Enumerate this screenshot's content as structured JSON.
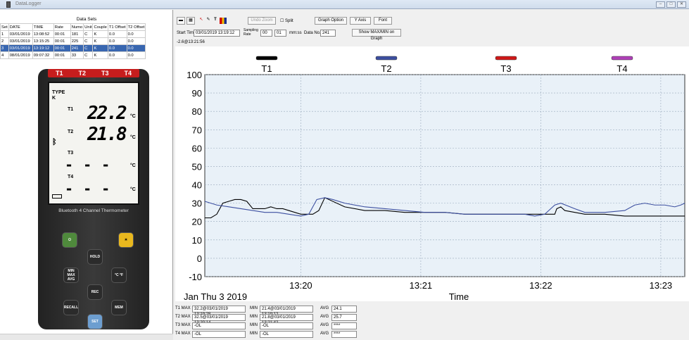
{
  "window": {
    "title": "DataLogger"
  },
  "datasets": {
    "title": "Data Sets",
    "headers": [
      "Set",
      "DATE",
      "TIME",
      "Rate",
      "Numo",
      "Unit",
      "Couple",
      "T1 Offset",
      "T2 Offset"
    ],
    "rows": [
      [
        "1",
        "03/01/2019",
        "13:08:52",
        "00:01",
        "181",
        "C",
        "K",
        "0.0",
        "0.0"
      ],
      [
        "2",
        "03/01/2019",
        "13:15:25",
        "00:01",
        "225",
        "C",
        "K",
        "0.0",
        "0.0"
      ],
      [
        "3",
        "03/01/2019",
        "13:19:12",
        "00:01",
        "241",
        "C",
        "K",
        "0.0",
        "0.0"
      ],
      [
        "4",
        "08/01/2019",
        "09:07:32",
        "00:01",
        "33",
        "C",
        "K",
        "0.0",
        "0.0"
      ]
    ],
    "selected_row": 2
  },
  "meter": {
    "channels": [
      "T1",
      "T2",
      "T3",
      "T4"
    ],
    "type_label": "TYPE",
    "type_value": "K",
    "t1_label": "T1",
    "t1_value": "22.2",
    "t2_label": "T2",
    "t2_value": "21.8",
    "t3_label": "T3",
    "t4_label": "T4",
    "dash": "- - -",
    "unit": "°C",
    "brand": "Bluetooth 4 Channel Thermometer",
    "battery_icon": "battery-icon",
    "bluetooth_icon": "bluetooth-icon",
    "keys": {
      "power": "⏻",
      "light": "☀",
      "hold": "HOLD",
      "minmax": "MIN MAX AVG",
      "cf": "°C °F",
      "rec": "REC",
      "recall": "RECALL",
      "mem": "MEM",
      "set": "SET"
    }
  },
  "toolbar": {
    "undo_zoom": "Undo Zoom",
    "split": "Split",
    "graph_option": "Graph Option",
    "y_axis": "Y Axis",
    "font": "Font",
    "start_time_label": "Start Time",
    "start_time": "03/01/2019 13:19:12",
    "sampling_rate_label": "Sampling Rate",
    "rate_h": "00",
    "rate_m": "01",
    "rate_unit": "mm:ss",
    "data_no_label": "Data No.",
    "data_no": "241",
    "show_maxmin": "Show MAX/MIN on Graph",
    "cursor_readout": "-2.6@13:21:56",
    "colors": {
      "draw": "#d00000",
      "palette_a": "#d00000",
      "palette_b": "#f0c000",
      "palette_c": "#1a2b8c"
    }
  },
  "chart_data": {
    "type": "line",
    "date_label": "Jan Thu 3 2019",
    "xlabel": "Time",
    "ylim": [
      -10,
      100
    ],
    "yticks": [
      -10,
      0,
      10,
      20,
      30,
      40,
      50,
      60,
      70,
      80,
      90,
      100
    ],
    "xlim": [
      "13:19:12",
      "13:23:12"
    ],
    "xticks": [
      {
        "t": "13:20",
        "v": 48
      },
      {
        "t": "13:21",
        "v": 108
      },
      {
        "t": "13:22",
        "v": 168
      },
      {
        "t": "13:23",
        "v": 228
      }
    ],
    "series": [
      {
        "name": "T1",
        "color": "#000000",
        "x": [
          0,
          3,
          6,
          9,
          12,
          15,
          18,
          21,
          24,
          27,
          30,
          33,
          36,
          39,
          42,
          45,
          48,
          51,
          54,
          57,
          60,
          70,
          80,
          90,
          100,
          110,
          120,
          130,
          140,
          150,
          160,
          170,
          175,
          176,
          178,
          180,
          185,
          190,
          200,
          210,
          220,
          230,
          240
        ],
        "y": [
          22,
          22,
          24,
          30,
          31,
          32,
          32,
          31,
          27,
          27,
          27,
          28,
          27,
          27,
          26,
          25,
          24,
          24,
          24,
          26,
          33,
          28,
          26,
          26,
          25,
          25,
          25,
          24,
          24,
          24,
          24,
          24,
          24,
          27,
          28,
          26,
          25,
          24,
          24,
          23,
          23,
          23,
          23
        ]
      },
      {
        "name": "T2",
        "color": "#3c4fa0",
        "x": [
          0,
          6,
          12,
          18,
          24,
          30,
          36,
          42,
          48,
          52,
          56,
          60,
          64,
          70,
          80,
          90,
          100,
          110,
          120,
          130,
          140,
          150,
          160,
          165,
          170,
          175,
          178,
          185,
          190,
          200,
          210,
          215,
          220,
          225,
          230,
          235,
          238,
          240
        ],
        "y": [
          31,
          29,
          28,
          27,
          26,
          25,
          25,
          24,
          23,
          24,
          32,
          33,
          32,
          30,
          28,
          27,
          26,
          25,
          25,
          24,
          24,
          24,
          24,
          23,
          24,
          29,
          30,
          27,
          25,
          25,
          26,
          29,
          30,
          29,
          29,
          28,
          29,
          30
        ]
      },
      {
        "name": "T3",
        "color": "#d01818",
        "x": [],
        "y": []
      },
      {
        "name": "T4",
        "color": "#b040b8",
        "x": [],
        "y": []
      }
    ]
  },
  "stats": {
    "rows": [
      {
        "max_label": "T1 MAX",
        "max": "32.2@03/01/2019 13:19:28",
        "min_label": "MIN",
        "min": "21.4@03/01/2019 13:19:12",
        "avg_label": "AVG",
        "avg": "24.1"
      },
      {
        "max_label": "T2 MAX",
        "max": "32.5@03/01/2019 13:20:14",
        "min_label": "MIN",
        "min": "21.8@03/01/2019 13:21:42",
        "avg_label": "AVG",
        "avg": "25.7"
      },
      {
        "max_label": "T3 MAX",
        "max": "-OL",
        "min_label": "MIN",
        "min": "-OL",
        "avg_label": "AVG",
        "avg": "****"
      },
      {
        "max_label": "T4 MAX",
        "max": "-OL",
        "min_label": "MIN",
        "min": "-OL",
        "avg_label": "AVG",
        "avg": "****"
      }
    ]
  }
}
